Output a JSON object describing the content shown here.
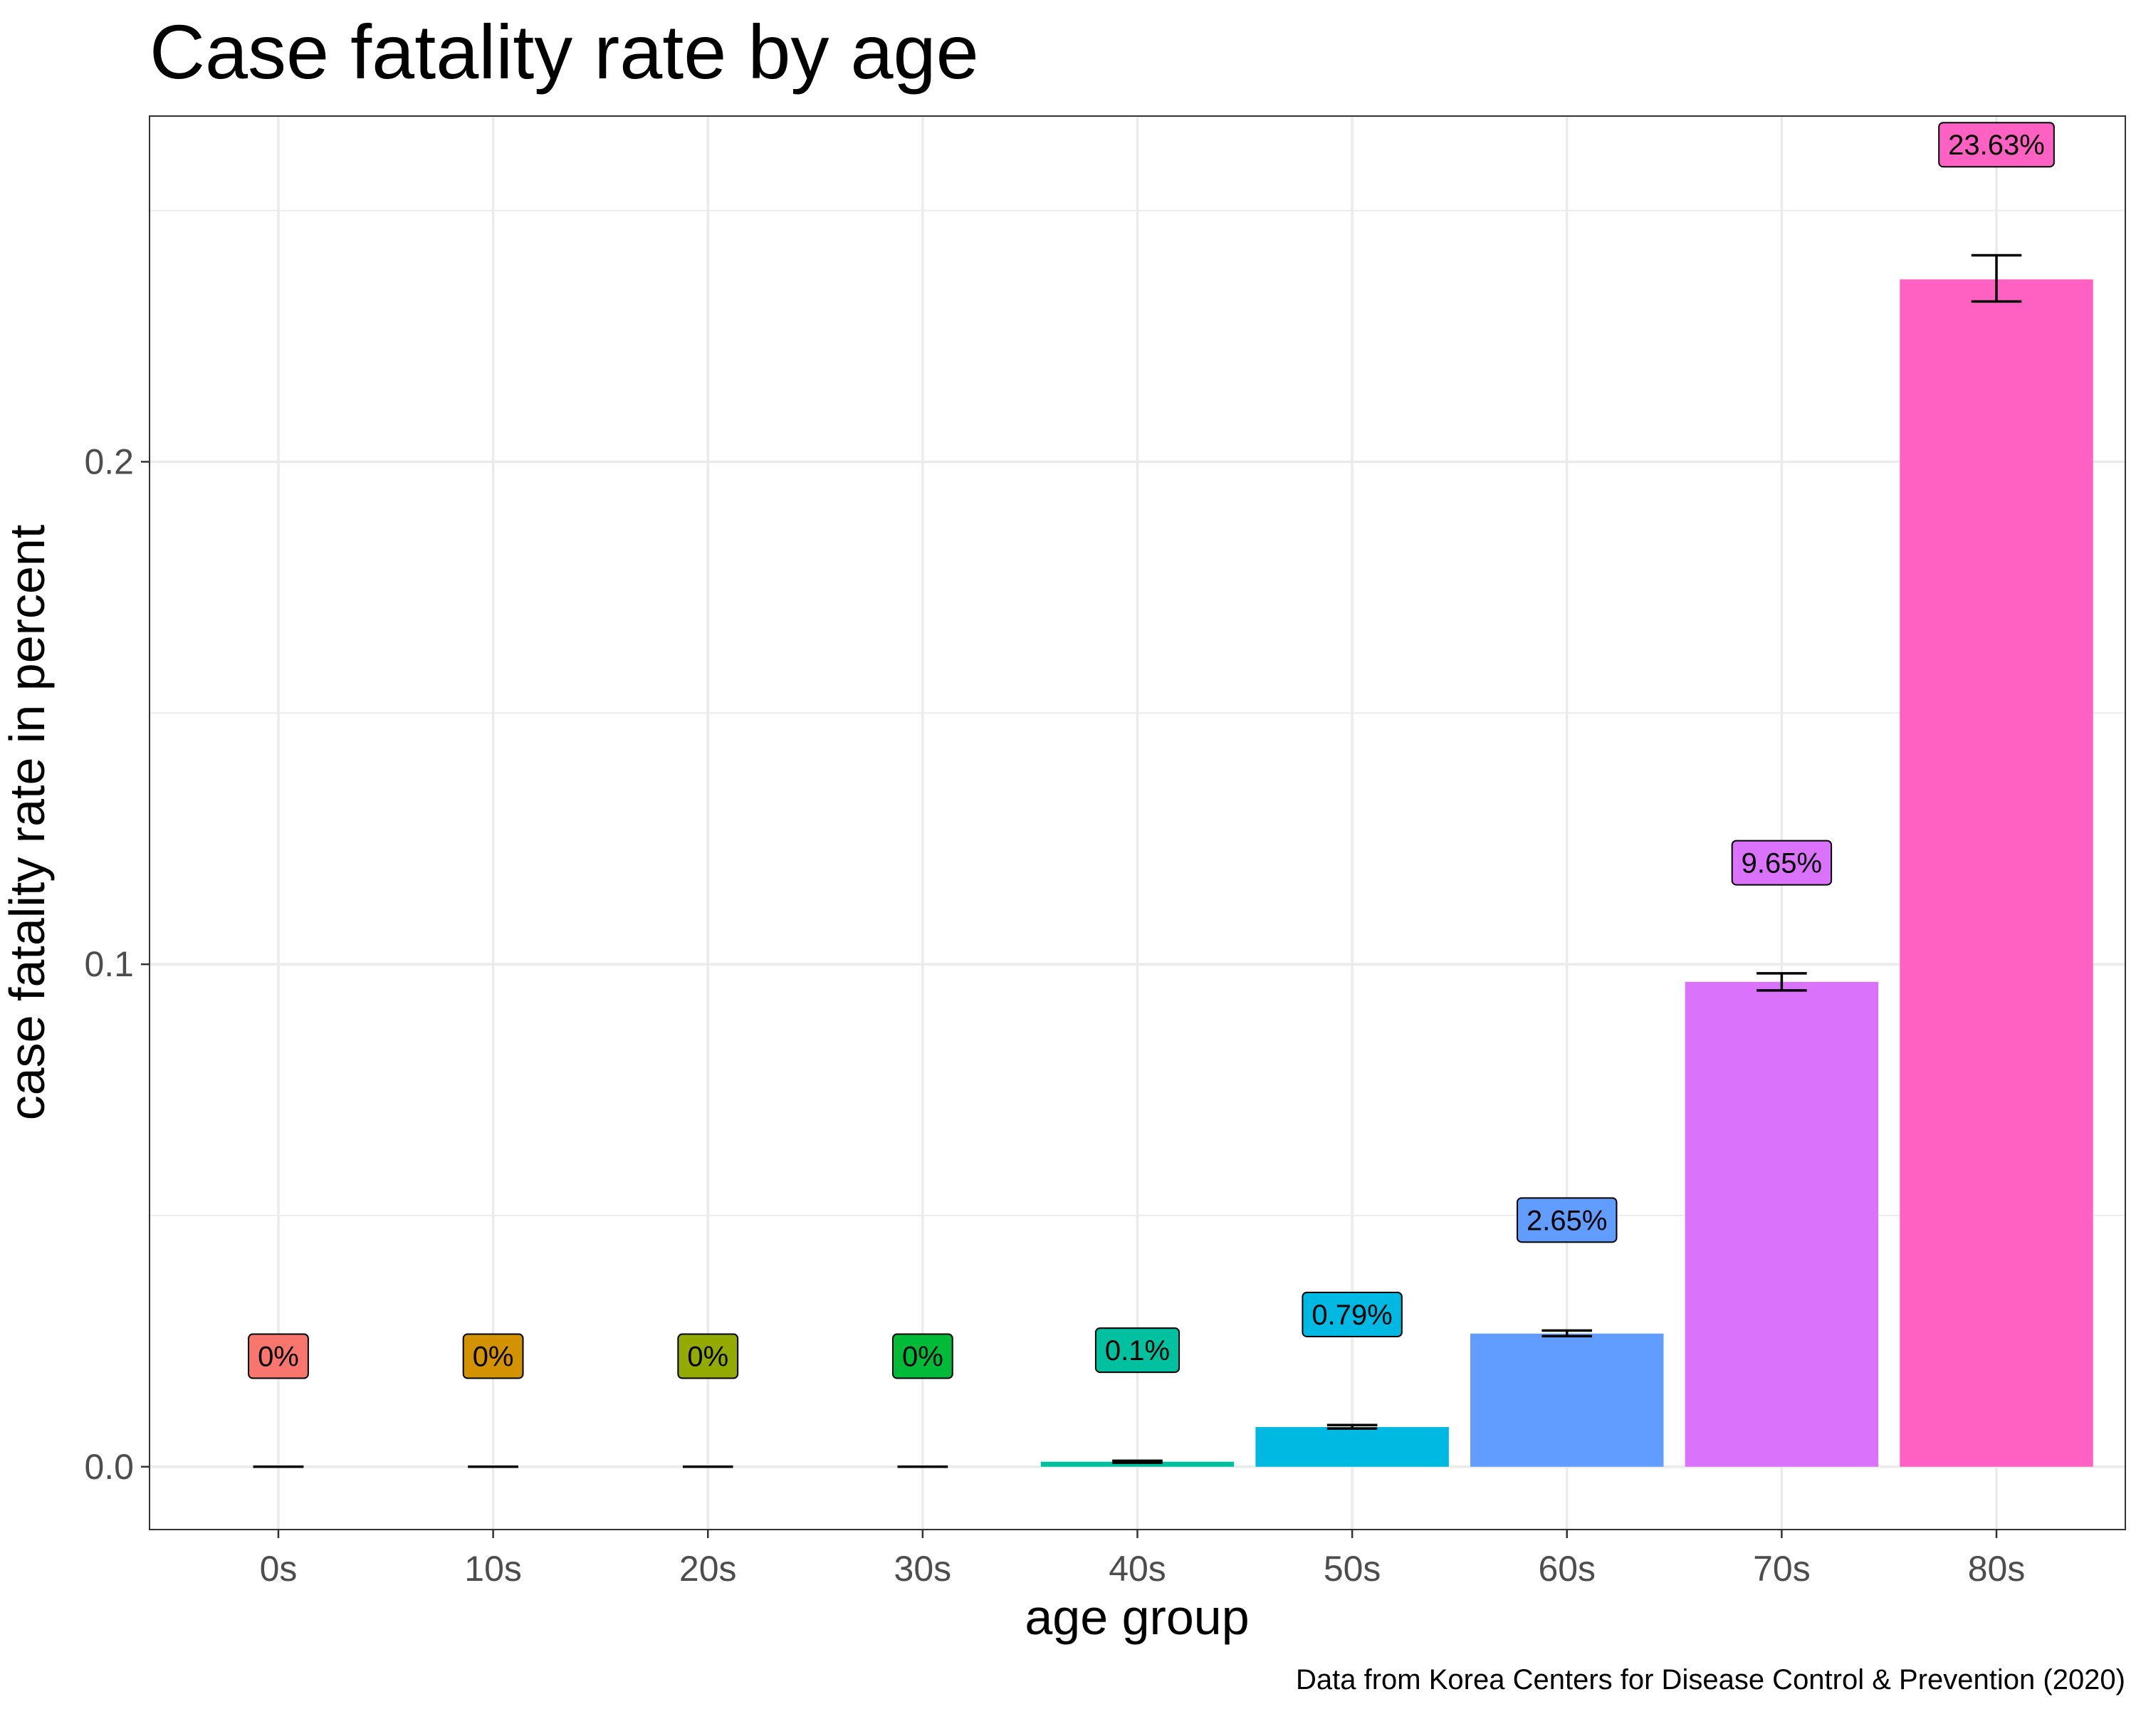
{
  "chart_data": {
    "type": "bar",
    "title": "Case fatality rate by age",
    "xlabel": "age group",
    "ylabel": "case fatality rate in percent",
    "caption": "Data from Korea Centers for Disease Control & Prevention (2020)",
    "ylim": [
      -0.0125,
      0.2688
    ],
    "yticks": [
      0.0,
      0.1,
      0.2
    ],
    "ytick_labels": [
      "0.0",
      "0.1",
      "0.2"
    ],
    "grid": true,
    "legend": "none",
    "categories": [
      "0s",
      "10s",
      "20s",
      "30s",
      "40s",
      "50s",
      "60s",
      "70s",
      "80s"
    ],
    "values": [
      0.0,
      0.0,
      0.0,
      0.0,
      0.001,
      0.0079,
      0.0265,
      0.0965,
      0.2363
    ],
    "error_low": [
      0.0,
      0.0,
      0.0,
      0.0,
      0.0008,
      0.0076,
      0.026,
      0.0948,
      0.2319
    ],
    "error_high": [
      0.0,
      0.0,
      0.0,
      0.0,
      0.0012,
      0.0083,
      0.0271,
      0.0982,
      0.2411
    ],
    "data_labels": [
      "0%",
      "0%",
      "0%",
      "0%",
      "0.1%",
      "0.79%",
      "2.65%",
      "9.65%",
      "23.63%"
    ],
    "colors": [
      "#F8766D",
      "#D39200",
      "#93AA00",
      "#00BA38",
      "#00C19F",
      "#00B9E3",
      "#619CFF",
      "#DB72FB",
      "#FF61C3"
    ]
  }
}
